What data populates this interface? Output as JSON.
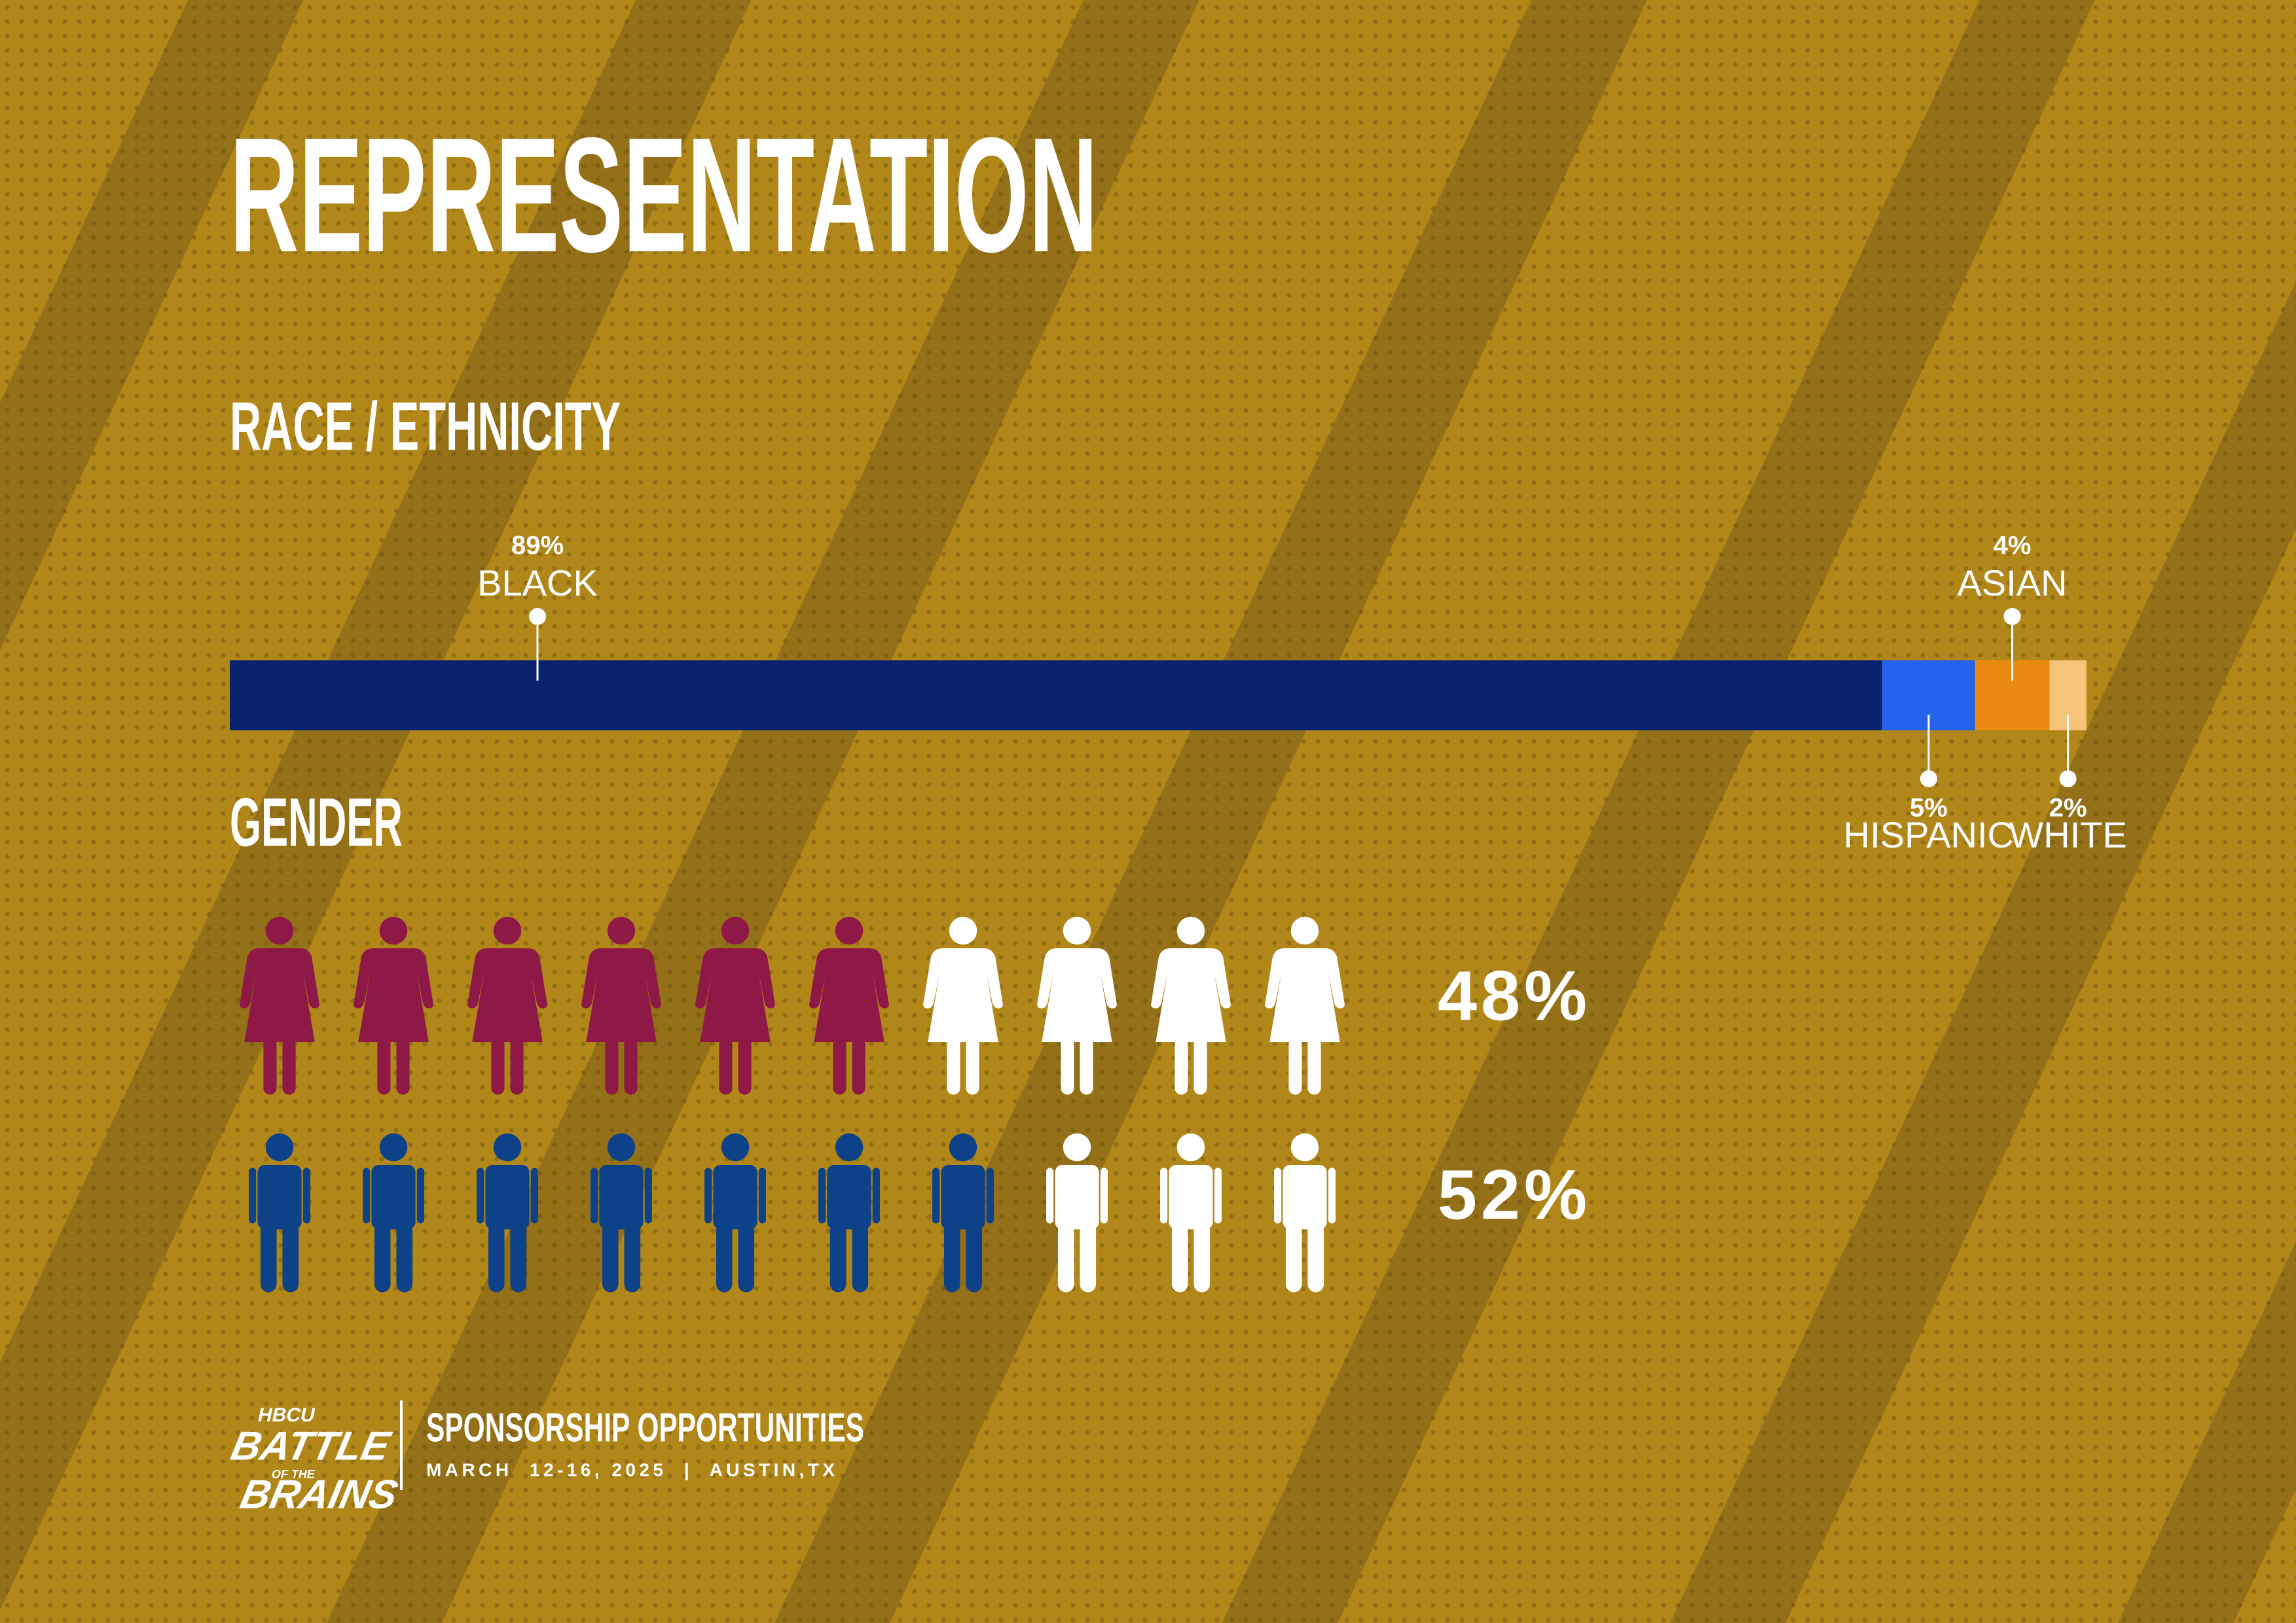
{
  "title": "REPRESENTATION",
  "chart_data": [
    {
      "type": "stacked-bar",
      "title": "RACE / ETHNICITY",
      "xlim": [
        0,
        100
      ],
      "series": [
        {
          "name": "BLACK",
          "color": "#0b2270",
          "values": [
            89
          ],
          "value_labels": [
            "89%"
          ],
          "label_position": "top"
        },
        {
          "name": "HISPANIC",
          "color": "#2563eb",
          "values": [
            5
          ],
          "value_labels": [
            "5%"
          ],
          "label_position": "bottom"
        },
        {
          "name": "ASIAN",
          "color": "#ea8a10",
          "values": [
            4
          ],
          "value_labels": [
            "4%"
          ],
          "label_position": "top"
        },
        {
          "name": "WHITE",
          "color": "#f7c27a",
          "values": [
            2
          ],
          "value_labels": [
            "2%"
          ],
          "label_position": "bottom"
        }
      ]
    },
    {
      "type": "pictograph",
      "title": "GENDER",
      "empty_color": "#ffffff",
      "series": [
        {
          "icon": "woman",
          "color": "#8e1846",
          "values": [
            48
          ],
          "value_labels": [
            "48%"
          ],
          "filled": 6,
          "icons": 10
        },
        {
          "icon": "man",
          "color": "#0d4188",
          "values": [
            52
          ],
          "value_labels": [
            "52%"
          ],
          "filled": 7,
          "icons": 10
        }
      ]
    }
  ],
  "footer": {
    "logo": [
      "HBCU",
      "BATTLE",
      "OF THE",
      "BRAINS"
    ],
    "heading": "SPONSORSHIP OPPORTUNITIES",
    "details": "MARCH  12-16, 2025  |  AUSTIN,TX"
  }
}
